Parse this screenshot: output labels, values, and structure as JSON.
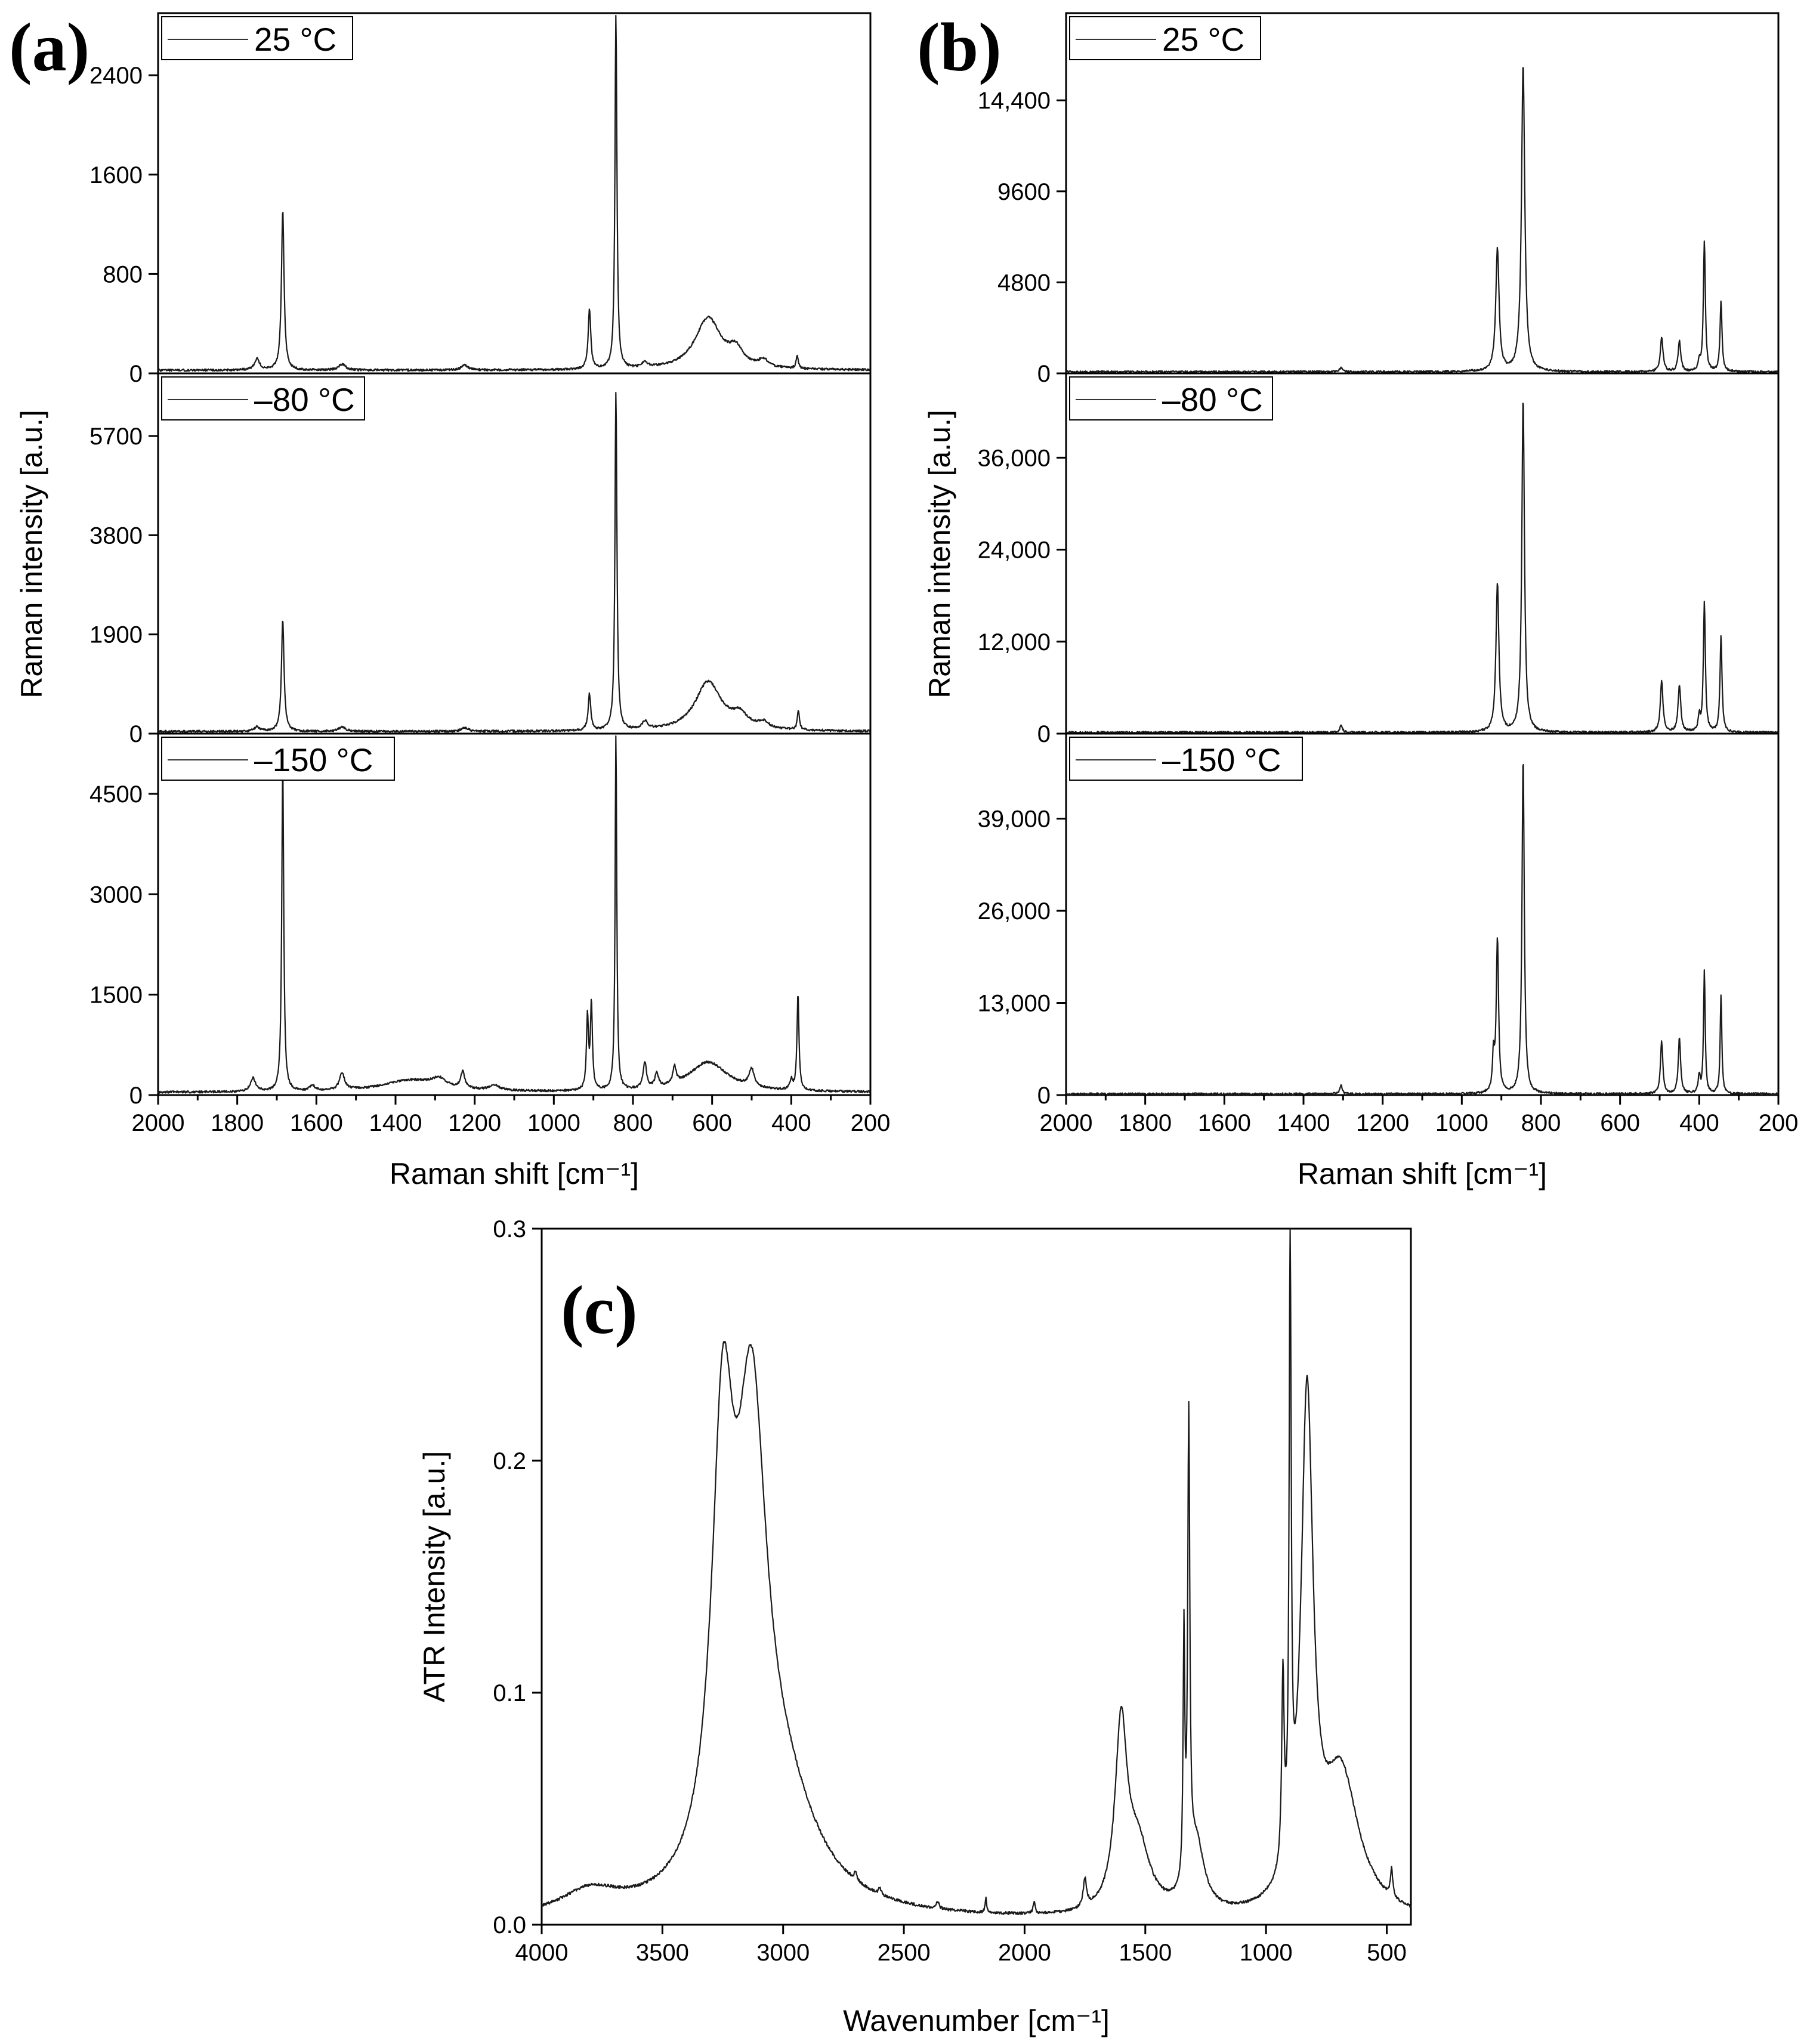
{
  "figure": {
    "panels": [
      {
        "id": "a",
        "label": "(a)",
        "xlabel": "Raman shift [cm⁻¹]",
        "ylabel": "Raman intensity [a.u.]",
        "xlim": [
          2000,
          200
        ],
        "xticks": [
          "2000",
          "1800",
          "1600",
          "1400",
          "1200",
          "1000",
          "800",
          "600",
          "400",
          "200"
        ],
        "subplots": [
          {
            "legend": "25 °C",
            "ylim": [
              0,
              2900
            ],
            "yticks": [
              {
                "v": 0,
                "t": "0"
              },
              {
                "v": 800,
                "t": "800"
              },
              {
                "v": 1600,
                "t": "1600"
              },
              {
                "v": 2400,
                "t": "2400"
              }
            ]
          },
          {
            "legend": "–80 °C",
            "ylim": [
              0,
              6900
            ],
            "yticks": [
              {
                "v": 0,
                "t": "0"
              },
              {
                "v": 1900,
                "t": "1900"
              },
              {
                "v": 3800,
                "t": "3800"
              },
              {
                "v": 5700,
                "t": "5700"
              }
            ]
          },
          {
            "legend": "–150 °C",
            "ylim": [
              0,
              5400
            ],
            "yticks": [
              {
                "v": 0,
                "t": "0"
              },
              {
                "v": 1500,
                "t": "1500"
              },
              {
                "v": 3000,
                "t": "3000"
              },
              {
                "v": 4500,
                "t": "4500"
              }
            ]
          }
        ]
      },
      {
        "id": "b",
        "label": "(b)",
        "xlabel": "Raman shift [cm⁻¹]",
        "ylabel": "Raman intensity [a.u.]",
        "xlim": [
          2000,
          200
        ],
        "xticks": [
          "2000",
          "1800",
          "1600",
          "1400",
          "1200",
          "1000",
          "800",
          "600",
          "400",
          "200"
        ],
        "subplots": [
          {
            "legend": "25 °C",
            "ylim": [
              0,
              19000
            ],
            "yticks": [
              {
                "v": 0,
                "t": "0"
              },
              {
                "v": 4800,
                "t": "4800"
              },
              {
                "v": 9600,
                "t": "9600"
              },
              {
                "v": 14400,
                "t": "14,400"
              }
            ]
          },
          {
            "legend": "–80 °C",
            "ylim": [
              0,
              47000
            ],
            "yticks": [
              {
                "v": 0,
                "t": "0"
              },
              {
                "v": 12000,
                "t": "12,000"
              },
              {
                "v": 24000,
                "t": "24,000"
              },
              {
                "v": 36000,
                "t": "36,000"
              }
            ]
          },
          {
            "legend": "–150 °C",
            "ylim": [
              0,
              51000
            ],
            "yticks": [
              {
                "v": 0,
                "t": "0"
              },
              {
                "v": 13000,
                "t": "13,000"
              },
              {
                "v": 26000,
                "t": "26,000"
              },
              {
                "v": 39000,
                "t": "39,000"
              }
            ]
          }
        ]
      },
      {
        "id": "c",
        "label": "(c)",
        "xlabel": "Wavenumber [cm⁻¹]",
        "ylabel": "ATR Intensity [a.u.]",
        "xlim": [
          4000,
          400
        ],
        "ylim": [
          0,
          0.3
        ],
        "xticks": [
          "4000",
          "3500",
          "3000",
          "2500",
          "2000",
          "1500",
          "1000",
          "500"
        ],
        "yticks": [
          "0.0",
          "0.1",
          "0.2",
          "0.3"
        ]
      }
    ]
  },
  "chart_data": [
    {
      "panel": "a",
      "type": "line",
      "xlabel": "Raman shift [cm⁻¹]",
      "ylabel": "Raman intensity [a.u.]",
      "xlim": [
        2000,
        200
      ],
      "series": [
        {
          "name": "25 °C",
          "ylim": [
            0,
            2900
          ],
          "baseline": 25,
          "peaks": [
            [
              1685,
              1300,
              4
            ],
            [
              1750,
              90,
              8
            ],
            [
              1535,
              50,
              10
            ],
            [
              1225,
              40,
              10
            ],
            [
              910,
              480,
              4
            ],
            [
              843,
              2880,
              3
            ],
            [
              770,
              40,
              10
            ],
            [
              610,
              420,
              40
            ],
            [
              540,
              130,
              20
            ],
            [
              470,
              60,
              15
            ],
            [
              385,
              110,
              3
            ]
          ]
        },
        {
          "name": "–80 °C",
          "ylim": [
            0,
            6900
          ],
          "baseline": 40,
          "peaks": [
            [
              1685,
              2150,
              4
            ],
            [
              1750,
              90,
              8
            ],
            [
              1535,
              90,
              10
            ],
            [
              1225,
              70,
              10
            ],
            [
              910,
              700,
              4
            ],
            [
              843,
              6550,
              3
            ],
            [
              770,
              150,
              8
            ],
            [
              610,
              950,
              40
            ],
            [
              530,
              250,
              25
            ],
            [
              470,
              120,
              15
            ],
            [
              382,
              380,
              3
            ]
          ]
        },
        {
          "name": "–150 °C",
          "ylim": [
            0,
            5400
          ],
          "baseline": 40,
          "peaks": [
            [
              1685,
              4950,
              3
            ],
            [
              1760,
              200,
              8
            ],
            [
              1610,
              80,
              8
            ],
            [
              1535,
              250,
              8
            ],
            [
              1360,
              180,
              90
            ],
            [
              1290,
              120,
              20
            ],
            [
              1230,
              250,
              6
            ],
            [
              1150,
              80,
              15
            ],
            [
              915,
              1100,
              3
            ],
            [
              905,
              1300,
              3
            ],
            [
              843,
              5400,
              2.5
            ],
            [
              770,
              400,
              5
            ],
            [
              740,
              220,
              5
            ],
            [
              695,
              260,
              5
            ],
            [
              610,
              450,
              60
            ],
            [
              500,
              260,
              8
            ],
            [
              400,
              150,
              4
            ],
            [
              383,
              1450,
              3
            ]
          ]
        }
      ]
    },
    {
      "panel": "b",
      "type": "line",
      "xlabel": "Raman shift [cm⁻¹]",
      "ylabel": "Raman intensity [a.u.]",
      "xlim": [
        2000,
        200
      ],
      "series": [
        {
          "name": "25 °C",
          "ylim": [
            0,
            19000
          ],
          "baseline": 80,
          "peaks": [
            [
              1305,
              250,
              4
            ],
            [
              910,
              6500,
              5
            ],
            [
              845,
              16300,
              5
            ],
            [
              495,
              1850,
              4
            ],
            [
              450,
              1600,
              4
            ],
            [
              400,
              500,
              3
            ],
            [
              387,
              6950,
              3
            ],
            [
              345,
              3700,
              3
            ]
          ]
        },
        {
          "name": "–80 °C",
          "ylim": [
            0,
            47000
          ],
          "baseline": 150,
          "peaks": [
            [
              1305,
              900,
              4
            ],
            [
              910,
              19500,
              4.5
            ],
            [
              845,
              44000,
              4
            ],
            [
              495,
              6700,
              4
            ],
            [
              450,
              6200,
              4
            ],
            [
              400,
              2000,
              3
            ],
            [
              387,
              17000,
              3
            ],
            [
              345,
              12700,
              3
            ]
          ]
        },
        {
          "name": "–150 °C",
          "ylim": [
            0,
            51000
          ],
          "baseline": 150,
          "peaks": [
            [
              1305,
              1200,
              3.5
            ],
            [
              920,
              5000,
              3
            ],
            [
              910,
              22000,
              3.5
            ],
            [
              845,
              48000,
              3.5
            ],
            [
              495,
              7500,
              3.5
            ],
            [
              450,
              8000,
              3.5
            ],
            [
              400,
              2500,
              3
            ],
            [
              387,
              17500,
              2.5
            ],
            [
              345,
              14000,
              2.5
            ]
          ]
        }
      ]
    },
    {
      "panel": "c",
      "type": "line",
      "xlabel": "Wavenumber [cm⁻¹]",
      "ylabel": "ATR Intensity [a.u.]",
      "xlim": [
        4000,
        400
      ],
      "ylim": [
        0,
        0.3
      ],
      "series": [
        {
          "name": "",
          "baseline": 0.001,
          "peaks": [
            [
              3800,
              0.01,
              150
            ],
            [
              3250,
              0.18,
              55
            ],
            [
              3130,
              0.19,
              75
            ],
            [
              3000,
              0.04,
              180
            ],
            [
              2700,
              0.004,
              6
            ],
            [
              2600,
              0.003,
              6
            ],
            [
              2360,
              0.003,
              6
            ],
            [
              2160,
              0.006,
              4
            ],
            [
              1960,
              0.005,
              5
            ],
            [
              1750,
              0.012,
              8
            ],
            [
              1600,
              0.078,
              30
            ],
            [
              1530,
              0.028,
              60
            ],
            [
              1340,
              0.105,
              4
            ],
            [
              1320,
              0.195,
              5
            ],
            [
              1290,
              0.03,
              40
            ],
            [
              930,
              0.08,
              6
            ],
            [
              900,
              0.26,
              5
            ],
            [
              830,
              0.215,
              30
            ],
            [
              690,
              0.06,
              90
            ],
            [
              480,
              0.012,
              6
            ]
          ]
        }
      ]
    }
  ]
}
